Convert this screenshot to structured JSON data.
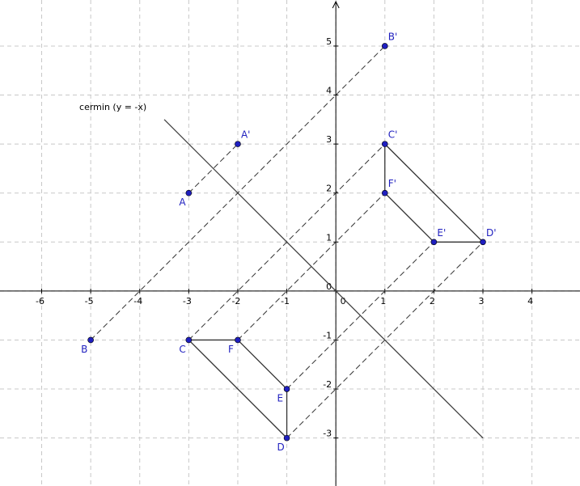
{
  "axes": {
    "xlim": [
      -6.85,
      4.98
    ],
    "ylim": [
      -3.98,
      5.94
    ],
    "xticks": [
      -6,
      -5,
      -4,
      -3,
      -2,
      -1,
      0,
      1,
      2,
      3,
      4
    ],
    "yticks": [
      -3,
      -2,
      -1,
      0,
      1,
      2,
      3,
      4,
      5
    ]
  },
  "mirror": {
    "label": "cermin (y = -x)",
    "from": [
      -3.5,
      3.5
    ],
    "to": [
      3,
      -3
    ]
  },
  "points": [
    {
      "label": "A",
      "x": -3,
      "y": 2
    },
    {
      "label": "B",
      "x": -5,
      "y": -1
    },
    {
      "label": "C",
      "x": -3,
      "y": -1
    },
    {
      "label": "D",
      "x": -1,
      "y": -3
    },
    {
      "label": "E",
      "x": -1,
      "y": -2
    },
    {
      "label": "F",
      "x": -2,
      "y": -1
    },
    {
      "label": "A'",
      "x": -2,
      "y": 3
    },
    {
      "label": "B'",
      "x": 1,
      "y": 5
    },
    {
      "label": "C'",
      "x": 1,
      "y": 3
    },
    {
      "label": "D'",
      "x": 3,
      "y": 1
    },
    {
      "label": "E'",
      "x": 2,
      "y": 1
    },
    {
      "label": "F'",
      "x": 1,
      "y": 2
    }
  ]
}
